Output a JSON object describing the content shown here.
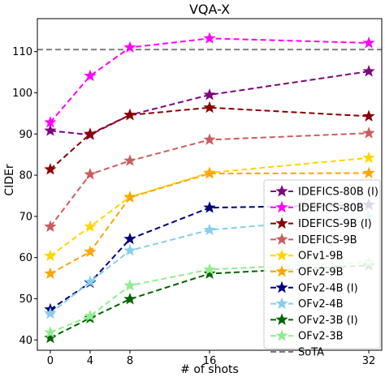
{
  "chart_data": {
    "type": "line",
    "title": "VQA-X",
    "xlabel": "# of shots",
    "ylabel": "CIDEr",
    "x": [
      0,
      4,
      8,
      16,
      32
    ],
    "x_ticks": [
      "0",
      "4",
      "8",
      "16",
      "32"
    ],
    "y_ticks": [
      "40",
      "50",
      "60",
      "70",
      "80",
      "90",
      "100",
      "110"
    ],
    "xlim": [
      -1.3,
      33.3
    ],
    "ylim": [
      37.5,
      118
    ],
    "grid": false,
    "legend_position": "lower-right",
    "reference_line": {
      "name": "SoTA",
      "value": 110.5,
      "color": "#808080"
    },
    "series": [
      {
        "name": "IDEFICS-80B (I)",
        "color": "#800080",
        "values": [
          90.8,
          89.8,
          94.6,
          99.5,
          105.2
        ]
      },
      {
        "name": "IDEFICS-80B",
        "color": "#ff00ff",
        "values": [
          92.8,
          104.1,
          111.0,
          113.2,
          112.1
        ]
      },
      {
        "name": "IDEFICS-9B (I)",
        "color": "#8b0000",
        "values": [
          81.4,
          90.0,
          94.6,
          96.4,
          94.3
        ]
      },
      {
        "name": "IDEFICS-9B",
        "color": "#cd5c5c",
        "values": [
          67.5,
          80.2,
          83.5,
          88.6,
          90.2
        ]
      },
      {
        "name": "OFv1-9B",
        "color": "#ffd700",
        "values": [
          60.4,
          67.5,
          74.7,
          80.6,
          84.2
        ]
      },
      {
        "name": "OFv2-9B",
        "color": "#ffa500",
        "values": [
          56.1,
          61.4,
          74.6,
          80.4,
          80.5
        ]
      },
      {
        "name": "OFv2-4B (I)",
        "color": "#000080",
        "values": [
          47.4,
          53.9,
          64.5,
          72.1,
          72.8
        ]
      },
      {
        "name": "OFv2-4B",
        "color": "#87ceeb",
        "values": [
          46.4,
          54.1,
          61.7,
          66.7,
          70.0
        ]
      },
      {
        "name": "OFv2-3B (I)",
        "color": "#006400",
        "values": [
          40.5,
          45.3,
          49.9,
          56.1,
          58.1
        ]
      },
      {
        "name": "OFv2-3B",
        "color": "#90ee90",
        "values": [
          41.8,
          45.8,
          53.2,
          57.1,
          58.9
        ]
      }
    ]
  }
}
